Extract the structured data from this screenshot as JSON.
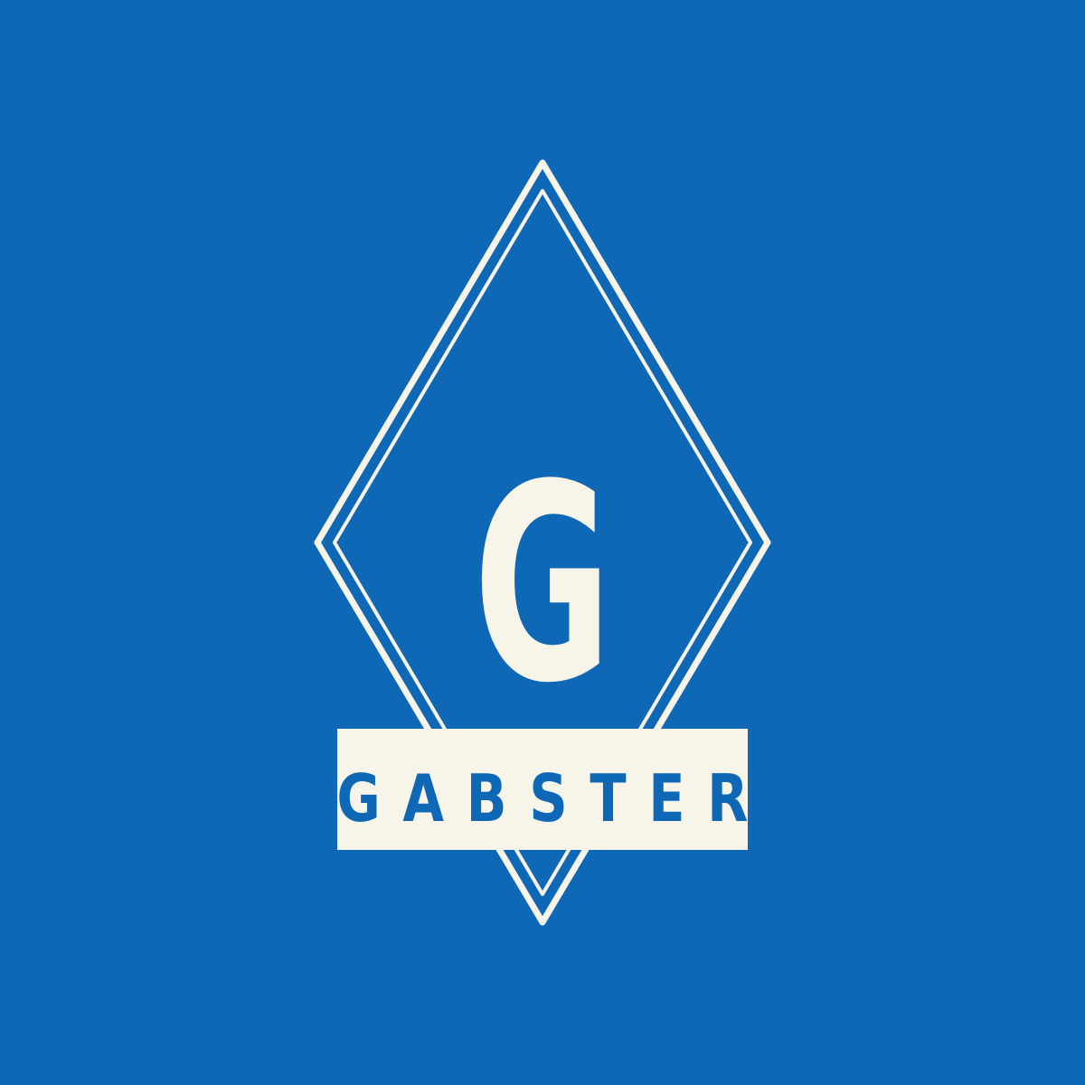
{
  "logo": {
    "monogram": "G",
    "wordmark": "GABSTER"
  },
  "colors": {
    "background": "#0f68b6",
    "cream": "#f7f4ea",
    "text_blue": "#0f68b6"
  },
  "icons": {
    "emblem": "double-diamond-outline"
  }
}
